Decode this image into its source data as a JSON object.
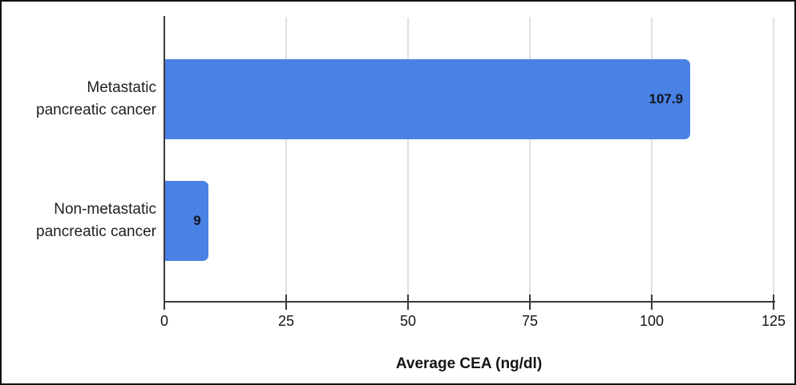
{
  "chart_data": {
    "type": "bar",
    "orientation": "horizontal",
    "title": "",
    "xlabel": "Average CEA (ng/dl)",
    "ylabel": "",
    "categories": [
      {
        "label_lines": [
          "Metastatic",
          "pancreatic cancer"
        ],
        "value": 107.9,
        "value_label": "107.9"
      },
      {
        "label_lines": [
          "Non-metastatic",
          "pancreatic cancer"
        ],
        "value": 9,
        "value_label": "9"
      }
    ],
    "xlim": [
      0,
      125
    ],
    "xticks": [
      0,
      25,
      50,
      75,
      100,
      125
    ],
    "grid": true,
    "legend": "none",
    "colors": {
      "bar": "#4a81e4",
      "gridline": "#e0e0e0",
      "axis": "#3a3a3a",
      "value_label": "#10151c",
      "tick_label": "#141414",
      "category_label": "#1f1f1f",
      "frame_border": "#111111",
      "background": "#ffffff"
    }
  }
}
